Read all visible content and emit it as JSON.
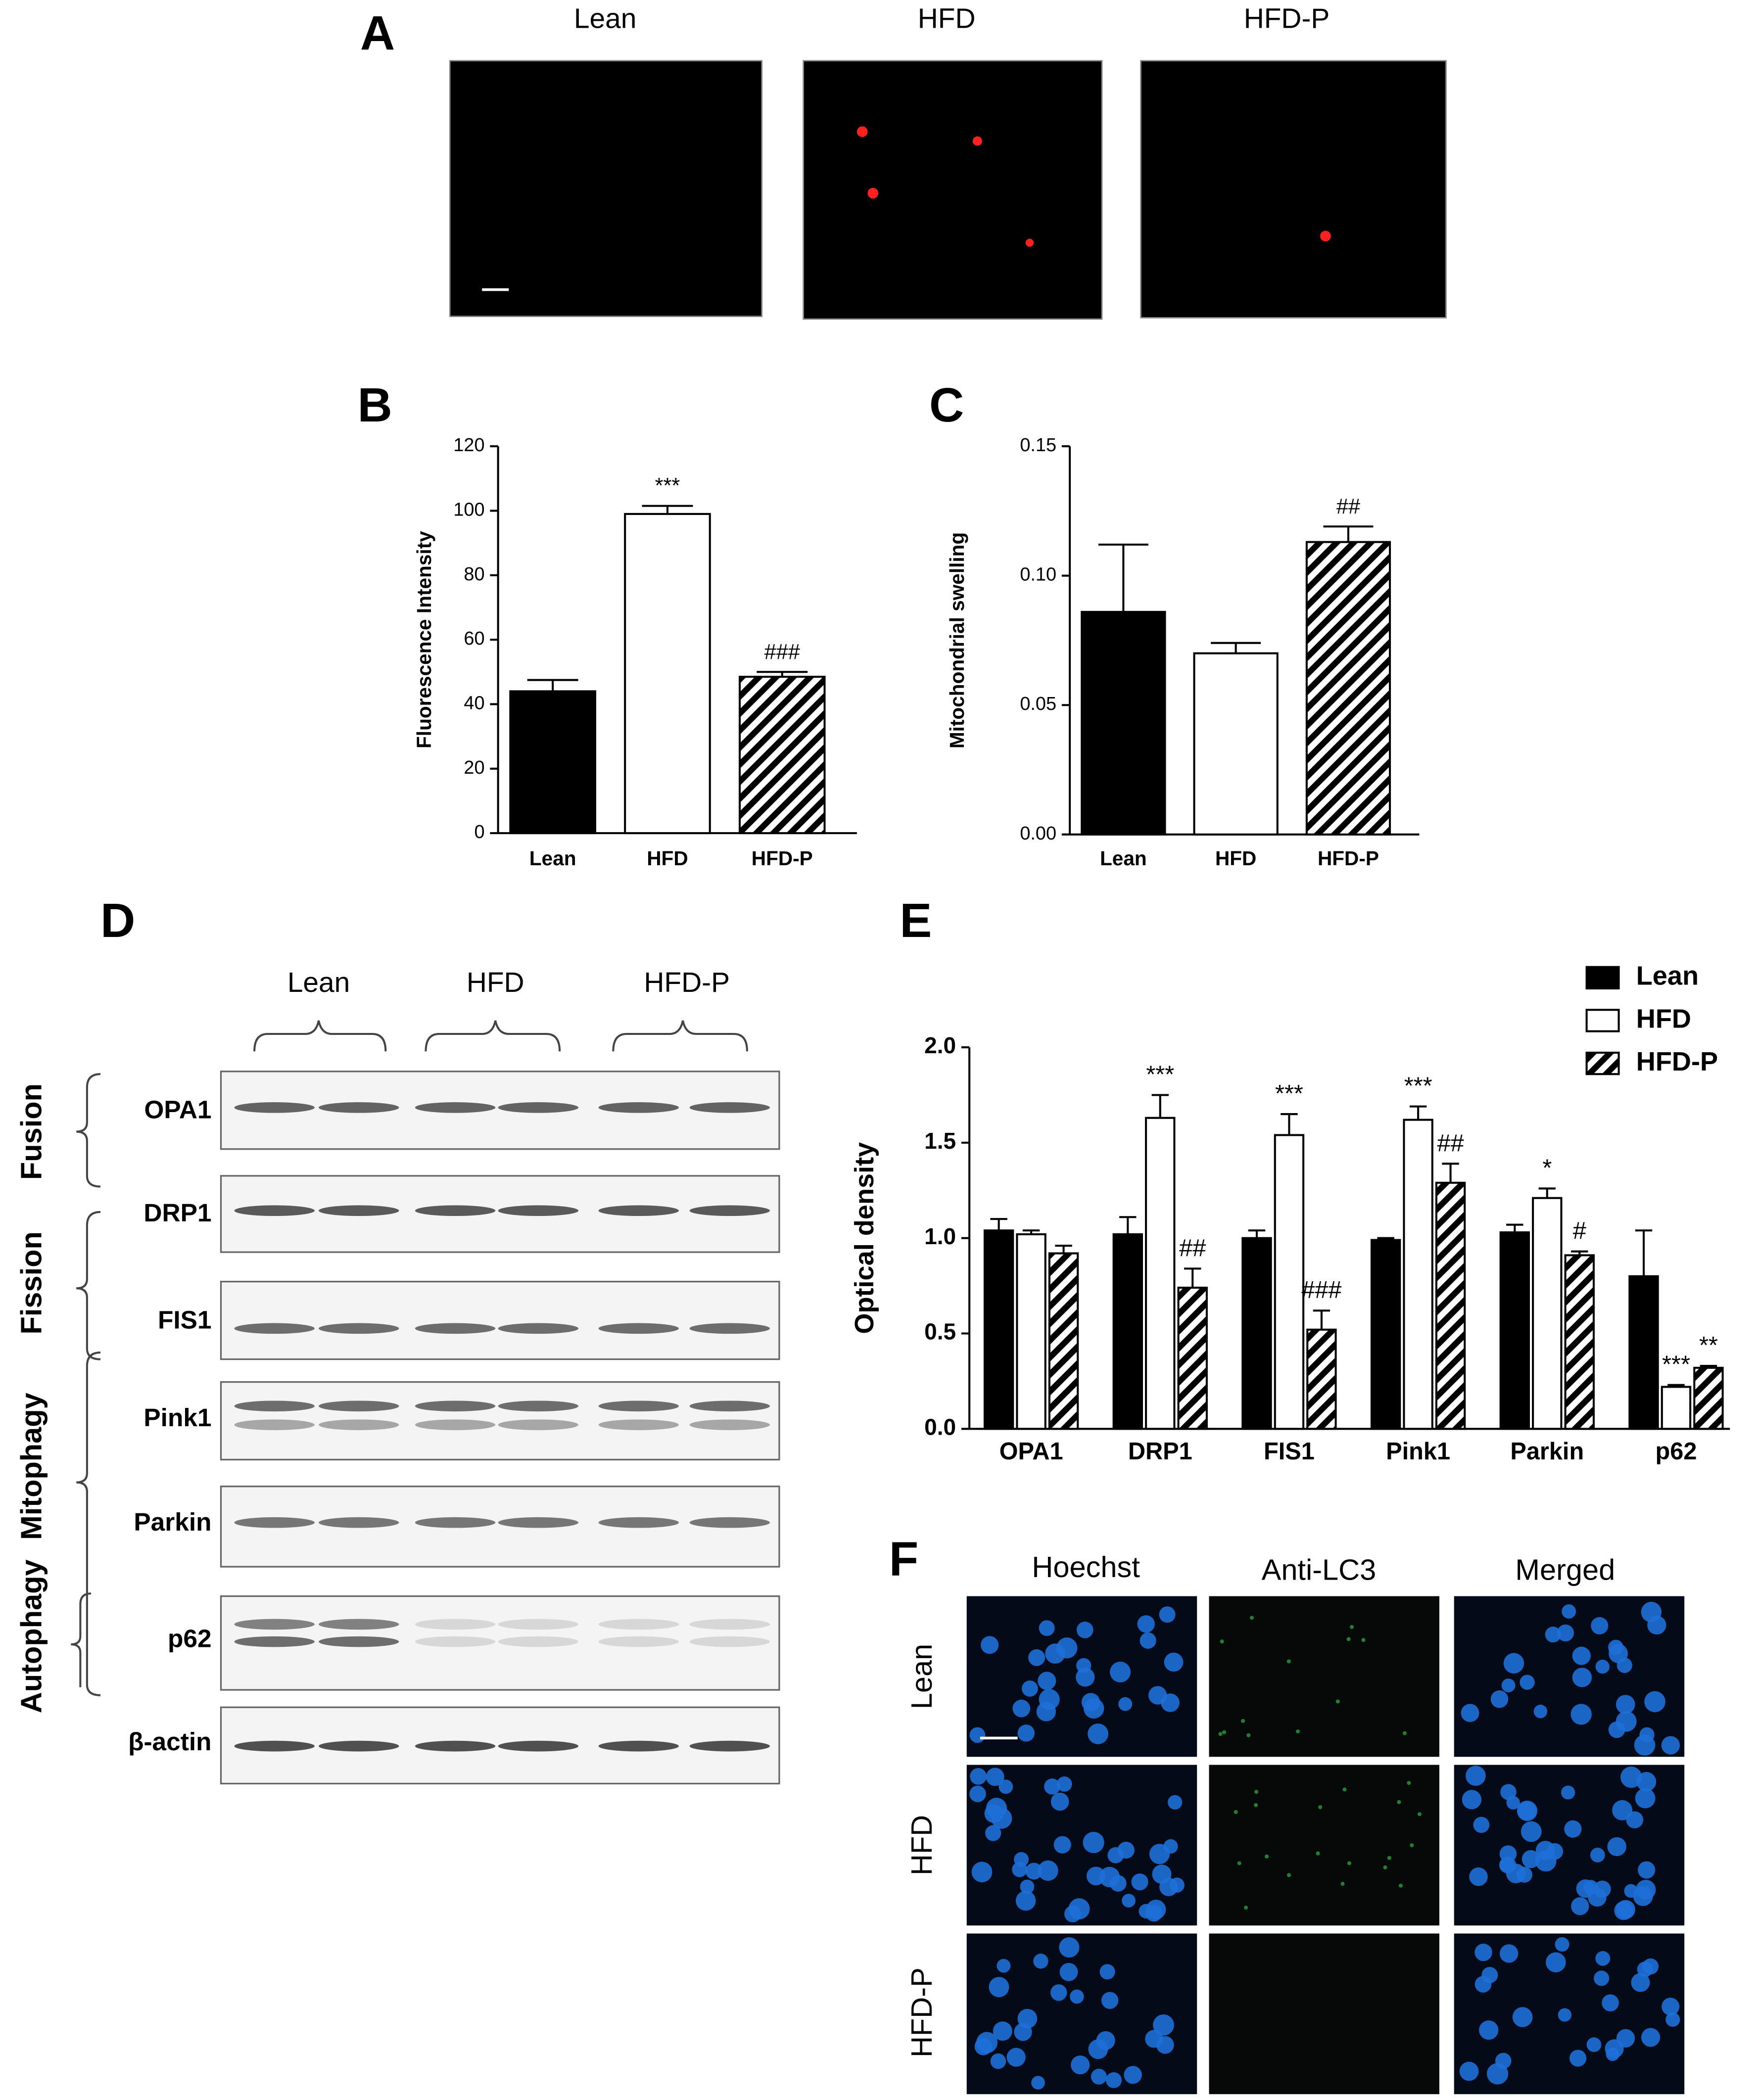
{
  "panel_a": {
    "label": "A",
    "columns": [
      "Lean",
      "HFD",
      "HFD-P"
    ]
  },
  "chart_data": [
    {
      "type": "bar",
      "panel_label": "B",
      "ylabel": "Fluorescence Intensity",
      "categories": [
        "Lean",
        "HFD",
        "HFD-P"
      ],
      "values": [
        44,
        99,
        48.5
      ],
      "errors": [
        3.5,
        2.5,
        1.5
      ],
      "annotations": [
        null,
        "***",
        "###"
      ],
      "colors": [
        "#000000",
        "#ffffff",
        "#000000"
      ],
      "hatched": [
        false,
        false,
        true
      ],
      "ylim": [
        0,
        120
      ],
      "yticks": [
        0,
        20,
        40,
        60,
        80,
        100,
        120
      ]
    },
    {
      "type": "bar",
      "panel_label": "C",
      "ylabel": "Mitochondrial swelling",
      "categories": [
        "Lean",
        "HFD",
        "HFD-P"
      ],
      "values": [
        0.086,
        0.07,
        0.113
      ],
      "errors": [
        0.026,
        0.004,
        0.006
      ],
      "annotations": [
        null,
        null,
        "##"
      ],
      "colors": [
        "#000000",
        "#ffffff",
        "#000000"
      ],
      "hatched": [
        false,
        false,
        true
      ],
      "ylim": [
        0,
        0.15
      ],
      "yticks": [
        {
          "value": 0,
          "label": "0.00"
        },
        {
          "value": 0.05,
          "label": "0.05"
        },
        {
          "value": 0.1,
          "label": "0.10"
        },
        {
          "value": 0.15,
          "label": "0.15"
        }
      ]
    },
    {
      "type": "bar",
      "panel_label": "E",
      "ylabel": "Optical density",
      "categories": [
        "OPA1",
        "DRP1",
        "FIS1",
        "Pink1",
        "Parkin",
        "p62"
      ],
      "series": [
        {
          "name": "Lean",
          "color": "#000000",
          "hatched": false,
          "values": [
            1.04,
            1.02,
            1.0,
            0.99,
            1.03,
            0.8
          ],
          "errors": [
            0.06,
            0.09,
            0.04,
            0.01,
            0.04,
            0.24
          ],
          "annotations": [
            null,
            null,
            null,
            null,
            null,
            null
          ]
        },
        {
          "name": "HFD",
          "color": "#ffffff",
          "hatched": false,
          "values": [
            1.02,
            1.63,
            1.54,
            1.62,
            1.21,
            0.22
          ],
          "errors": [
            0.02,
            0.12,
            0.11,
            0.07,
            0.05,
            0.01
          ],
          "annotations": [
            null,
            "***",
            "***",
            "***",
            "*",
            "***"
          ]
        },
        {
          "name": "HFD-P",
          "color": "#000000",
          "hatched": true,
          "values": [
            0.92,
            0.74,
            0.52,
            1.29,
            0.91,
            0.32
          ],
          "errors": [
            0.04,
            0.1,
            0.1,
            0.1,
            0.02,
            0.01
          ],
          "annotations": [
            null,
            "##",
            "###",
            "##",
            "#",
            "**"
          ]
        }
      ],
      "legend": "top-right",
      "ylim": [
        0,
        2.0
      ],
      "yticks": [
        {
          "value": 0,
          "label": "0.0"
        },
        {
          "value": 0.5,
          "label": "0.5"
        },
        {
          "value": 1.0,
          "label": "1.0"
        },
        {
          "value": 1.5,
          "label": "1.5"
        },
        {
          "value": 2.0,
          "label": "2.0"
        }
      ]
    }
  ],
  "panel_d": {
    "label": "D",
    "groups": [
      "Lean",
      "HFD",
      "HFD-P"
    ],
    "rows": [
      "OPA1",
      "DRP1",
      "FIS1",
      "Pink1",
      "Parkin",
      "p62",
      "β-actin"
    ],
    "processes": [
      "Fusion",
      "Fission",
      "Mitophagy",
      "Autophagy"
    ]
  },
  "panel_f": {
    "label": "F",
    "columns": [
      "Hoechst",
      "Anti-LC3",
      "Merged"
    ],
    "rows": [
      "Lean",
      "HFD",
      "HFD-P"
    ]
  }
}
